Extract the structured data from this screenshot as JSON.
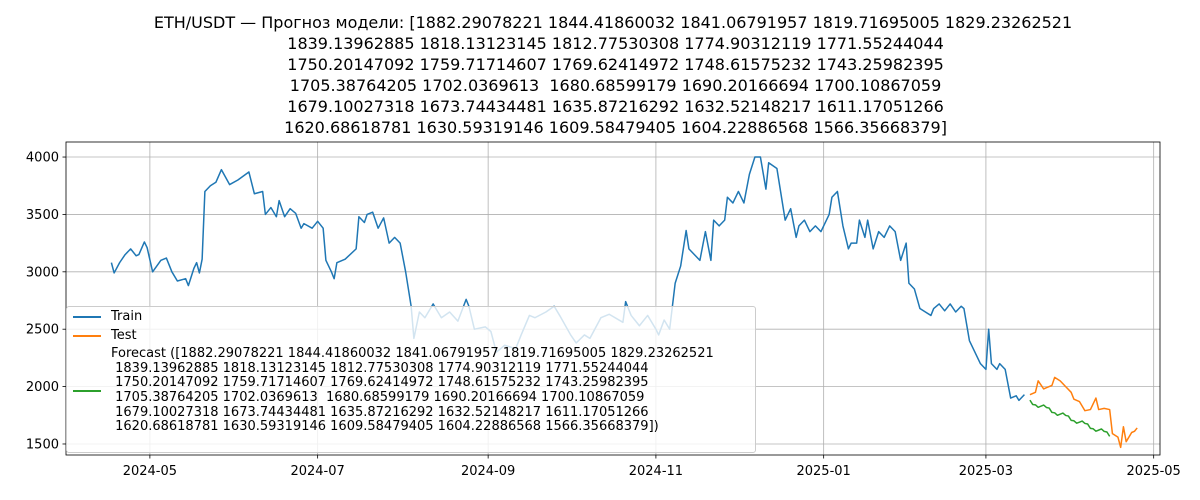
{
  "chart_data": {
    "type": "line",
    "title": "ETH/USDT — Прогноз модели: [1882.29078221 1844.41860032 1841.06791957 1819.71695005 1829.23262521\n 1839.13962885 1818.13123145 1812.77530308 1774.90312119 1771.55244044\n 1750.20147092 1759.71714607 1769.62414972 1748.61575232 1743.25982395\n 1705.38764205 1702.0369613  1680.68599179 1690.20166694 1700.10867059\n 1679.10027318 1673.74434481 1635.87216292 1632.52148217 1611.17051266\n 1620.68618781 1630.59319146 1609.58479405 1604.22886568 1566.35668379]",
    "xlim": [
      19813.5,
      20211.3
    ],
    "ylim": [
      1404,
      4131
    ],
    "xticks": [
      {
        "value": 19844,
        "label": "2024-05"
      },
      {
        "value": 19905,
        "label": "2024-07"
      },
      {
        "value": 19967,
        "label": "2024-09"
      },
      {
        "value": 20028,
        "label": "2024-11"
      },
      {
        "value": 20089,
        "label": "2025-01"
      },
      {
        "value": 20148,
        "label": "2025-03"
      },
      {
        "value": 20209,
        "label": "2025-05"
      }
    ],
    "yticks": [
      1500,
      2000,
      2500,
      3000,
      3500,
      4000
    ],
    "grid": true,
    "legend": "lower left",
    "series": [
      {
        "name": "Train",
        "color": "#1f77b4",
        "x": [
          19830,
          19831,
          19833,
          19835,
          19837,
          19839,
          19840,
          19842,
          19843,
          19845,
          19848,
          19850,
          19852,
          19854,
          19857,
          19858,
          19860,
          19861,
          19862,
          19863,
          19864,
          19866,
          19868,
          19870,
          19873,
          19876,
          19880,
          19882,
          19885,
          19886,
          19888,
          19890,
          19891,
          19893,
          19895,
          19897,
          19899,
          19900,
          19903,
          19905,
          19907,
          19908,
          19910,
          19911,
          19912,
          19915,
          19919,
          19920,
          19922,
          19923,
          19925,
          19927,
          19929,
          19931,
          19933,
          19935,
          19937,
          19939,
          19940,
          19942,
          19944,
          19947,
          19950,
          19953,
          19956,
          19959,
          19960,
          19962,
          19966,
          19968,
          19970,
          19973,
          19977,
          19979,
          19982,
          19984,
          19988,
          19991,
          19993,
          19997,
          19999,
          20002,
          20004,
          20008,
          20011,
          20016,
          20017,
          20019,
          20022,
          20025,
          20028,
          20029,
          20031,
          20033,
          20035,
          20037,
          20039,
          20040,
          20042,
          20044,
          20046,
          20048,
          20049,
          20051,
          20053,
          20054,
          20056,
          20058,
          20060,
          20062,
          20064,
          20066,
          20068,
          20069,
          20072,
          20075,
          20077,
          20079,
          20080,
          20082,
          20084,
          20086,
          20088,
          20091,
          20092,
          20094,
          20096,
          20098,
          20099,
          20101,
          20102,
          20104,
          20105,
          20107,
          20109,
          20111,
          20113,
          20115,
          20117,
          20119,
          20120,
          20122,
          20124,
          20126,
          20128,
          20129,
          20131,
          20133,
          20135,
          20137,
          20139,
          20140,
          20142,
          20144,
          20146,
          20148,
          20149,
          20150,
          20152,
          20153,
          20155,
          20157,
          20159,
          20160,
          20162
        ],
        "values": [
          3080,
          2990,
          3080,
          3150,
          3200,
          3140,
          3150,
          3260,
          3210,
          3000,
          3100,
          3120,
          3000,
          2920,
          2940,
          2880,
          3030,
          3080,
          2990,
          3110,
          3700,
          3750,
          3780,
          3890,
          3760,
          3800,
          3870,
          3680,
          3700,
          3500,
          3560,
          3480,
          3620,
          3480,
          3550,
          3510,
          3380,
          3420,
          3380,
          3440,
          3380,
          3100,
          3000,
          2940,
          3080,
          3110,
          3200,
          3480,
          3430,
          3500,
          3520,
          3380,
          3470,
          3250,
          3300,
          3250,
          3000,
          2700,
          2420,
          2650,
          2600,
          2720,
          2600,
          2650,
          2570,
          2760,
          2700,
          2500,
          2520,
          2480,
          2300,
          2360,
          2330,
          2450,
          2620,
          2600,
          2650,
          2700,
          2620,
          2450,
          2380,
          2450,
          2420,
          2600,
          2630,
          2560,
          2740,
          2620,
          2530,
          2620,
          2500,
          2450,
          2580,
          2500,
          2900,
          3050,
          3360,
          3200,
          3150,
          3100,
          3350,
          3100,
          3450,
          3400,
          3450,
          3650,
          3600,
          3700,
          3600,
          3850,
          4000,
          4000,
          3720,
          3950,
          3900,
          3450,
          3550,
          3300,
          3400,
          3450,
          3350,
          3400,
          3350,
          3500,
          3650,
          3700,
          3400,
          3200,
          3250,
          3250,
          3450,
          3300,
          3450,
          3200,
          3350,
          3300,
          3400,
          3350,
          3100,
          3250,
          2900,
          2850,
          2680,
          2650,
          2620,
          2680,
          2720,
          2660,
          2720,
          2650,
          2700,
          2680,
          2400,
          2300,
          2200,
          2150,
          2500,
          2200,
          2150,
          2200,
          2150,
          1900,
          1920,
          1880,
          1930
        ]
      },
      {
        "name": "Test",
        "color": "#ff7f0e",
        "x": [
          20164,
          20166,
          20167,
          20169,
          20170,
          20172,
          20173,
          20175,
          20177,
          20179,
          20180,
          20182,
          20184,
          20186,
          20188,
          20189,
          20191,
          20193,
          20194,
          20196,
          20197,
          20198,
          20199,
          20201,
          20202,
          20203
        ],
        "values": [
          1930,
          1950,
          2050,
          1980,
          1990,
          2010,
          2080,
          2050,
          2000,
          1950,
          1890,
          1870,
          1790,
          1800,
          1900,
          1800,
          1810,
          1800,
          1590,
          1560,
          1470,
          1650,
          1520,
          1600,
          1610,
          1640
        ]
      },
      {
        "name": "Forecast ([1882.29078221 1844.41860032 1841.06791957 1819.71695005 1829.23262521\n 1839.13962885 1818.13123145 1812.77530308 1774.90312119 1771.55244044\n 1750.20147092 1759.71714607 1769.62414972 1748.61575232 1743.25982395\n 1705.38764205 1702.0369613  1680.68599179 1690.20166694 1700.10867059\n 1679.10027318 1673.74434481 1635.87216292 1632.52148217 1611.17051266\n 1620.68618781 1630.59319146 1609.58479405 1604.22886568 1566.35668379])",
        "color": "#2ca02c",
        "x": [
          20164,
          20165,
          20166,
          20167,
          20168,
          20169,
          20170,
          20171,
          20172,
          20173,
          20174,
          20175,
          20176,
          20177,
          20178,
          20179,
          20180,
          20181,
          20182,
          20183,
          20184,
          20185,
          20186,
          20187,
          20188,
          20189,
          20190,
          20191,
          20192,
          20193
        ],
        "values": [
          1882.29078221,
          1844.41860032,
          1841.06791957,
          1819.71695005,
          1829.23262521,
          1839.13962885,
          1818.13123145,
          1812.77530308,
          1774.90312119,
          1771.55244044,
          1750.20147092,
          1759.71714607,
          1769.62414972,
          1748.61575232,
          1743.25982395,
          1705.38764205,
          1702.0369613,
          1680.68599179,
          1690.20166694,
          1700.10867059,
          1679.10027318,
          1673.74434481,
          1635.87216292,
          1632.52148217,
          1611.17051266,
          1620.68618781,
          1630.59319146,
          1609.58479405,
          1604.22886568,
          1566.35668379
        ]
      }
    ]
  }
}
